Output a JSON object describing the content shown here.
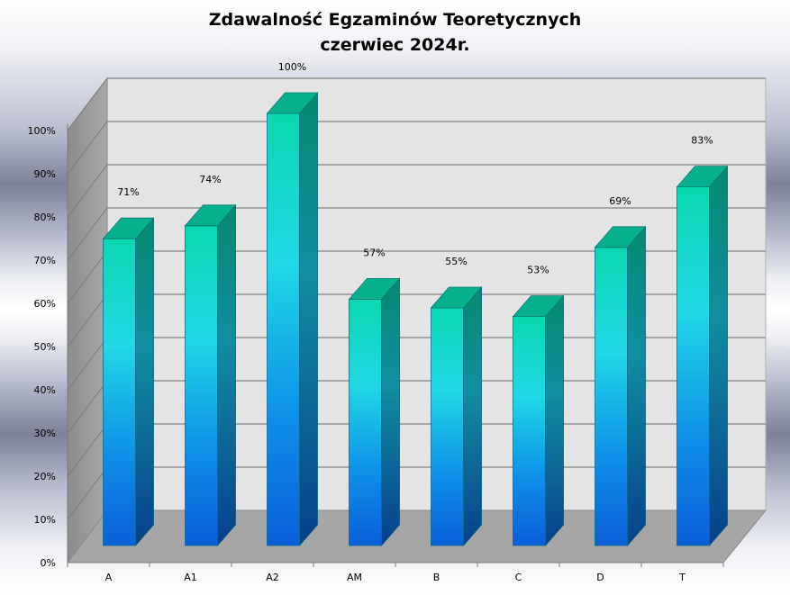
{
  "chart_data": {
    "type": "bar",
    "title": "Zdawalność Egzaminów Teoretycznych",
    "subtitle": "czerwiec 2024r.",
    "xlabel": "",
    "ylabel": "",
    "categories": [
      "A",
      "A1",
      "A2",
      "AM",
      "B",
      "C",
      "D",
      "T"
    ],
    "values": [
      71,
      74,
      100,
      57,
      55,
      53,
      69,
      83
    ],
    "data_labels": [
      "71%",
      "74%",
      "100%",
      "57%",
      "55%",
      "53%",
      "69%",
      "83%"
    ],
    "ylim": [
      0,
      100
    ],
    "yticks": [
      "0%",
      "10%",
      "20%",
      "30%",
      "40%",
      "50%",
      "60%",
      "70%",
      "80%",
      "90%",
      "100%"
    ],
    "grid": true,
    "legend": "none",
    "style": "3d-cylinder-columns",
    "colors": {
      "bar_top": "#0ad8b0",
      "bar_mid": "#20d8e6",
      "bar_bottom": "#0a5fd8",
      "back_wall": "#e4e4e4",
      "side_wall": "#9a9a9a",
      "floor": "#a6a6a6",
      "gridline": "#808080"
    }
  }
}
